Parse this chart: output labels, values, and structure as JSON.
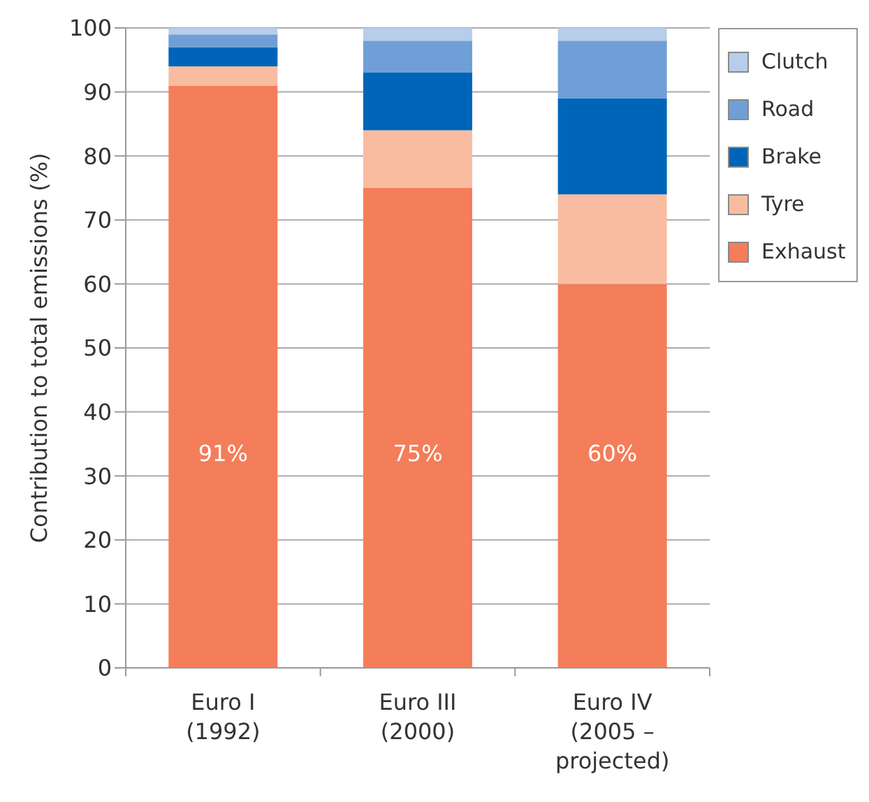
{
  "chart_data": {
    "type": "bar",
    "stacked": true,
    "ylabel": "Contribution to total emissions (%)",
    "categories": [
      "Euro I (1992)",
      "Euro III (2000)",
      "Euro IV (2005 – projected)"
    ],
    "series": [
      {
        "name": "Exhaust",
        "color": "#f47d5a",
        "values": [
          91,
          75,
          60
        ],
        "value_labels": [
          "91%",
          "75%",
          "60%"
        ]
      },
      {
        "name": "Tyre",
        "color": "#f9bca0",
        "values": [
          3,
          9,
          14
        ]
      },
      {
        "name": "Brake",
        "color": "#0065b8",
        "values": [
          3,
          9,
          15
        ]
      },
      {
        "name": "Road",
        "color": "#6f9fd6",
        "values": [
          2,
          5,
          9
        ]
      },
      {
        "name": "Clutch",
        "color": "#b7cdea",
        "values": [
          1,
          2,
          2
        ]
      }
    ],
    "ylim": [
      0,
      100
    ],
    "yticks": [
      0,
      10,
      20,
      30,
      40,
      50,
      60,
      70,
      80,
      90,
      100
    ],
    "grid": "y",
    "legend": "top right"
  }
}
